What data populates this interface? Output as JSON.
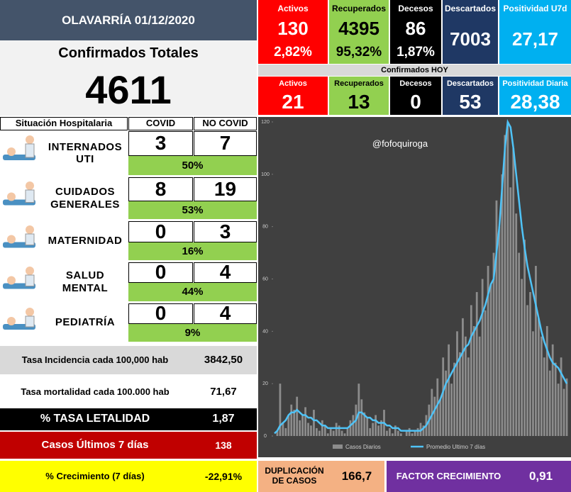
{
  "header": {
    "title": "OLAVARRÍA 01/12/2020"
  },
  "totals": {
    "label": "Confirmados Totales",
    "value": "4611"
  },
  "summary": [
    {
      "label": "Activos",
      "value": "130",
      "pct": "2,82%"
    },
    {
      "label": "Recuperados",
      "value": "4395",
      "pct": "95,32%"
    },
    {
      "label": "Decesos",
      "value": "86",
      "pct": "1,87%"
    },
    {
      "label": "Descartados",
      "value": "7003"
    },
    {
      "label": "Positividad U7d",
      "value": "27,17"
    }
  ],
  "today": {
    "title": "Confirmados HOY",
    "items": [
      {
        "label": "Activos",
        "value": "21"
      },
      {
        "label": "Recuperados",
        "value": "13"
      },
      {
        "label": "Decesos",
        "value": "0"
      },
      {
        "label": "Descartados",
        "value": "53"
      },
      {
        "label": "Positividad Diaria",
        "value": "28,38"
      }
    ]
  },
  "hospital": {
    "headers": [
      "Situación Hospitalaria",
      "COVID",
      "NO COVID"
    ],
    "rows": [
      {
        "label": "INTERNADOS UTI",
        "covid": "3",
        "no_covid": "7",
        "pct": "50%"
      },
      {
        "label": "CUIDADOS GENERALES",
        "covid": "8",
        "no_covid": "19",
        "pct": "53%"
      },
      {
        "label": "MATERNIDAD",
        "covid": "0",
        "no_covid": "3",
        "pct": "16%"
      },
      {
        "label": "SALUD MENTAL",
        "covid": "0",
        "no_covid": "4",
        "pct": "44%"
      },
      {
        "label": "PEDIATRÍA",
        "covid": "0",
        "no_covid": "4",
        "pct": "9%"
      }
    ]
  },
  "stats": [
    {
      "label": "Tasa Incidencia cada 100,000 hab",
      "value": "3842,50"
    },
    {
      "label": "Tasa mortalidad cada 100.000 hab",
      "value": "71,67"
    },
    {
      "label": "% TASA LETALIDAD",
      "value": "1,87"
    },
    {
      "label": "Casos Últimos 7 días",
      "value": "138"
    },
    {
      "label": "% Crecimiento (7 días)",
      "value": "-22,91%"
    }
  ],
  "bottom": [
    {
      "label": "DUPLICACIÓN DE CASOS",
      "value": "166,7"
    },
    {
      "label": "FACTOR CRECIMIENTO",
      "value": "0,91"
    }
  ],
  "chart_data": {
    "type": "bar-line",
    "watermark": "@fofoquiroga",
    "ylim": [
      0,
      120
    ],
    "yticks": [
      0,
      20,
      40,
      60,
      80,
      100,
      120
    ],
    "grid": false,
    "series": [
      {
        "name": "Casos Diarios",
        "type": "bar",
        "color": "#8c8c8c",
        "values": [
          0,
          2,
          20,
          5,
          3,
          8,
          12,
          10,
          15,
          6,
          8,
          11,
          5,
          4,
          10,
          3,
          2,
          6,
          4,
          1,
          3,
          2,
          5,
          4,
          2,
          1,
          3,
          6,
          8,
          12,
          20,
          14,
          9,
          7,
          3,
          5,
          8,
          4,
          6,
          10,
          2,
          3,
          1,
          4,
          2,
          1,
          0,
          2,
          3,
          1,
          2,
          3,
          5,
          4,
          8,
          12,
          18,
          15,
          22,
          14,
          30,
          25,
          35,
          20,
          28,
          40,
          32,
          45,
          38,
          30,
          50,
          42,
          55,
          38,
          60,
          48,
          65,
          58,
          70,
          90,
          80,
          100,
          115,
          120,
          95,
          110,
          85,
          70,
          60,
          75,
          50,
          55,
          40,
          65,
          45,
          38,
          30,
          42,
          25,
          35,
          28,
          20,
          30,
          18,
          22
        ]
      },
      {
        "name": "Promedio Ultimo 7 días",
        "type": "line",
        "color": "#4fc3f7",
        "values": [
          1,
          2,
          4,
          5,
          6,
          8,
          9,
          9,
          10,
          9,
          8,
          8,
          7,
          7,
          6,
          6,
          5,
          4,
          4,
          3,
          3,
          3,
          3,
          3,
          3,
          3,
          3,
          4,
          5,
          6,
          9,
          9,
          8,
          7,
          7,
          6,
          6,
          5,
          5,
          5,
          4,
          4,
          3,
          3,
          3,
          2,
          2,
          2,
          2,
          2,
          2,
          2,
          2,
          3,
          4,
          6,
          8,
          10,
          12,
          14,
          17,
          20,
          22,
          24,
          26,
          28,
          30,
          32,
          34,
          35,
          38,
          40,
          42,
          44,
          47,
          50,
          54,
          58,
          60,
          70,
          80,
          95,
          110,
          120,
          118,
          110,
          100,
          90,
          80,
          72,
          65,
          60,
          55,
          50,
          45,
          40,
          36,
          33,
          30,
          28,
          27,
          26,
          24,
          22,
          20
        ]
      }
    ]
  }
}
